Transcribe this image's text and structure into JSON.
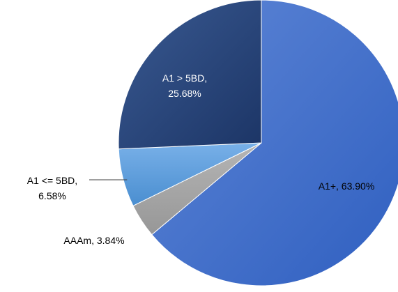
{
  "chart_data": {
    "type": "pie",
    "title": "",
    "legend": "none",
    "start_angle_deg": 0,
    "direction": "clockwise",
    "slices": [
      {
        "name": "A1+",
        "value": 63.9,
        "label_line1": "A1+, 63.90%",
        "label_line2": "",
        "color": "#3f6fcd",
        "label_color": "#000000",
        "leader_line": false
      },
      {
        "name": "AAAm",
        "value": 3.84,
        "label_line1": "AAAm, 3.84%",
        "label_line2": "",
        "color": "#a5a5a5",
        "label_color": "#000000",
        "leader_line": false
      },
      {
        "name": "A1 <= 5BD",
        "value": 6.58,
        "label_line1": "A1 <= 5BD,",
        "label_line2": "6.58%",
        "color": "#5b9bd5",
        "label_color": "#000000",
        "leader_line": true
      },
      {
        "name": "A1 > 5BD",
        "value": 25.68,
        "label_line1": "A1 > 5BD,",
        "label_line2": "25.68%",
        "color": "#264478",
        "label_color": "#ffffff",
        "leader_line": false
      }
    ]
  }
}
